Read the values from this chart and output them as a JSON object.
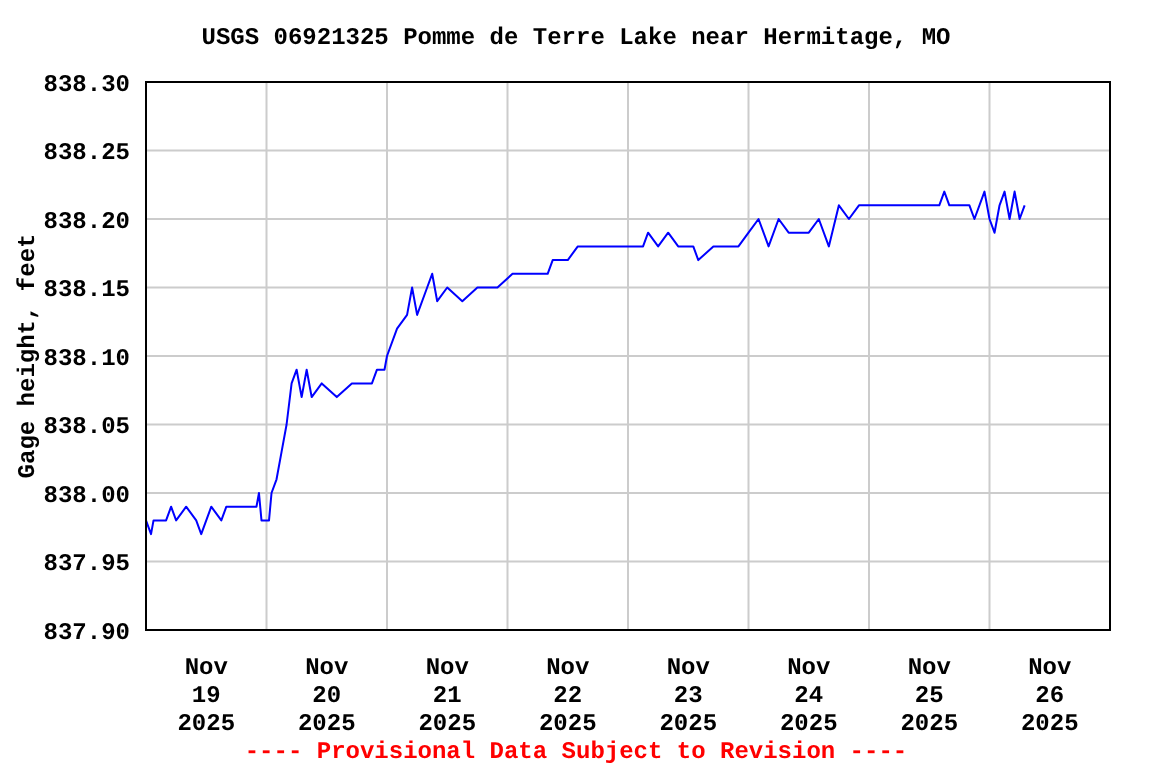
{
  "chart_data": {
    "type": "line",
    "title": "USGS 06921325 Pomme de Terre Lake near Hermitage, MO",
    "ylabel": "Gage height, feet",
    "annotations": [
      "---- Provisional Data Subject to Revision ----"
    ],
    "x": [
      "2025-11-19T00:00",
      "2025-11-19T01:00",
      "2025-11-19T01:30",
      "2025-11-19T04:00",
      "2025-11-19T05:00",
      "2025-11-19T06:00",
      "2025-11-19T08:00",
      "2025-11-19T10:00",
      "2025-11-19T11:00",
      "2025-11-19T12:00",
      "2025-11-19T13:00",
      "2025-11-19T15:00",
      "2025-11-19T16:00",
      "2025-11-19T22:00",
      "2025-11-19T22:30",
      "2025-11-19T23:00",
      "2025-11-20T00:30",
      "2025-11-20T01:00",
      "2025-11-20T02:00",
      "2025-11-20T03:00",
      "2025-11-20T04:00",
      "2025-11-20T05:00",
      "2025-11-20T06:00",
      "2025-11-20T07:00",
      "2025-11-20T08:00",
      "2025-11-20T09:00",
      "2025-11-20T11:00",
      "2025-11-20T14:00",
      "2025-11-20T17:00",
      "2025-11-20T21:00",
      "2025-11-20T22:00",
      "2025-11-20T23:30",
      "2025-11-21T00:00",
      "2025-11-21T02:00",
      "2025-11-21T04:00",
      "2025-11-21T05:00",
      "2025-11-21T06:00",
      "2025-11-21T08:00",
      "2025-11-21T09:00",
      "2025-11-21T10:00",
      "2025-11-21T12:00",
      "2025-11-21T15:00",
      "2025-11-21T18:00",
      "2025-11-21T22:00",
      "2025-11-22T01:00",
      "2025-11-22T08:00",
      "2025-11-22T09:00",
      "2025-11-22T12:00",
      "2025-11-22T14:00",
      "2025-11-23T03:00",
      "2025-11-23T04:00",
      "2025-11-23T06:00",
      "2025-11-23T08:00",
      "2025-11-23T10:00",
      "2025-11-23T13:00",
      "2025-11-23T14:00",
      "2025-11-23T17:00",
      "2025-11-23T22:00",
      "2025-11-24T00:00",
      "2025-11-24T02:00",
      "2025-11-24T04:00",
      "2025-11-24T06:00",
      "2025-11-24T08:00",
      "2025-11-24T12:00",
      "2025-11-24T14:00",
      "2025-11-24T16:00",
      "2025-11-24T18:00",
      "2025-11-24T20:00",
      "2025-11-24T22:00",
      "2025-11-25T08:00",
      "2025-11-25T14:00",
      "2025-11-25T15:00",
      "2025-11-25T16:00",
      "2025-11-25T20:00",
      "2025-11-25T21:00",
      "2025-11-25T23:00",
      "2025-11-26T00:00",
      "2025-11-26T01:00",
      "2025-11-26T02:00",
      "2025-11-26T03:00",
      "2025-11-26T04:00",
      "2025-11-26T05:00",
      "2025-11-26T06:00",
      "2025-11-26T07:00"
    ],
    "series": [
      {
        "color": "#0000ff",
        "values": [
          837.98,
          837.97,
          837.98,
          837.98,
          837.99,
          837.98,
          837.99,
          837.98,
          837.97,
          837.98,
          837.99,
          837.98,
          837.99,
          837.99,
          838.0,
          837.98,
          837.98,
          838.0,
          838.01,
          838.03,
          838.05,
          838.08,
          838.09,
          838.07,
          838.09,
          838.07,
          838.08,
          838.07,
          838.08,
          838.08,
          838.09,
          838.09,
          838.1,
          838.12,
          838.13,
          838.15,
          838.13,
          838.15,
          838.16,
          838.14,
          838.15,
          838.14,
          838.15,
          838.15,
          838.16,
          838.16,
          838.17,
          838.17,
          838.18,
          838.18,
          838.19,
          838.18,
          838.19,
          838.18,
          838.18,
          838.17,
          838.18,
          838.18,
          838.19,
          838.2,
          838.18,
          838.2,
          838.19,
          838.19,
          838.2,
          838.18,
          838.21,
          838.2,
          838.21,
          838.21,
          838.21,
          838.22,
          838.21,
          838.21,
          838.2,
          838.22,
          838.2,
          838.19,
          838.21,
          838.22,
          838.2,
          838.22,
          838.2,
          838.21
        ]
      }
    ],
    "xlim": [
      "2025-11-19T00:00",
      "2025-11-27T00:00"
    ],
    "xticks": [
      {
        "value": "2025-11-19T00:00",
        "label": null
      },
      {
        "value": "2025-11-19T12:00",
        "label": "Nov\n19\n2025"
      },
      {
        "value": "2025-11-20T00:00",
        "label": null
      },
      {
        "value": "2025-11-20T12:00",
        "label": "Nov\n20\n2025"
      },
      {
        "value": "2025-11-21T00:00",
        "label": null
      },
      {
        "value": "2025-11-21T12:00",
        "label": "Nov\n21\n2025"
      },
      {
        "value": "2025-11-22T00:00",
        "label": null
      },
      {
        "value": "2025-11-22T12:00",
        "label": "Nov\n22\n2025"
      },
      {
        "value": "2025-11-23T00:00",
        "label": null
      },
      {
        "value": "2025-11-23T12:00",
        "label": "Nov\n23\n2025"
      },
      {
        "value": "2025-11-24T00:00",
        "label": null
      },
      {
        "value": "2025-11-24T12:00",
        "label": "Nov\n24\n2025"
      },
      {
        "value": "2025-11-25T00:00",
        "label": null
      },
      {
        "value": "2025-11-25T12:00",
        "label": "Nov\n25\n2025"
      },
      {
        "value": "2025-11-26T00:00",
        "label": null
      },
      {
        "value": "2025-11-26T12:00",
        "label": "Nov\n26\n2025"
      },
      {
        "value": "2025-11-27T00:00",
        "label": null
      }
    ],
    "ylim": [
      837.9,
      838.3
    ],
    "yticks": [
      {
        "value": 837.9,
        "label": "837.90"
      },
      {
        "value": 837.95,
        "label": "837.95"
      },
      {
        "value": 838.0,
        "label": "838.00"
      },
      {
        "value": 838.05,
        "label": "838.05"
      },
      {
        "value": 838.1,
        "label": "838.10"
      },
      {
        "value": 838.15,
        "label": "838.15"
      },
      {
        "value": 838.2,
        "label": "838.20"
      },
      {
        "value": 838.25,
        "label": "838.25"
      },
      {
        "value": 838.3,
        "label": "838.30"
      }
    ],
    "grid": true,
    "marker": "none",
    "line_style": "solid"
  }
}
